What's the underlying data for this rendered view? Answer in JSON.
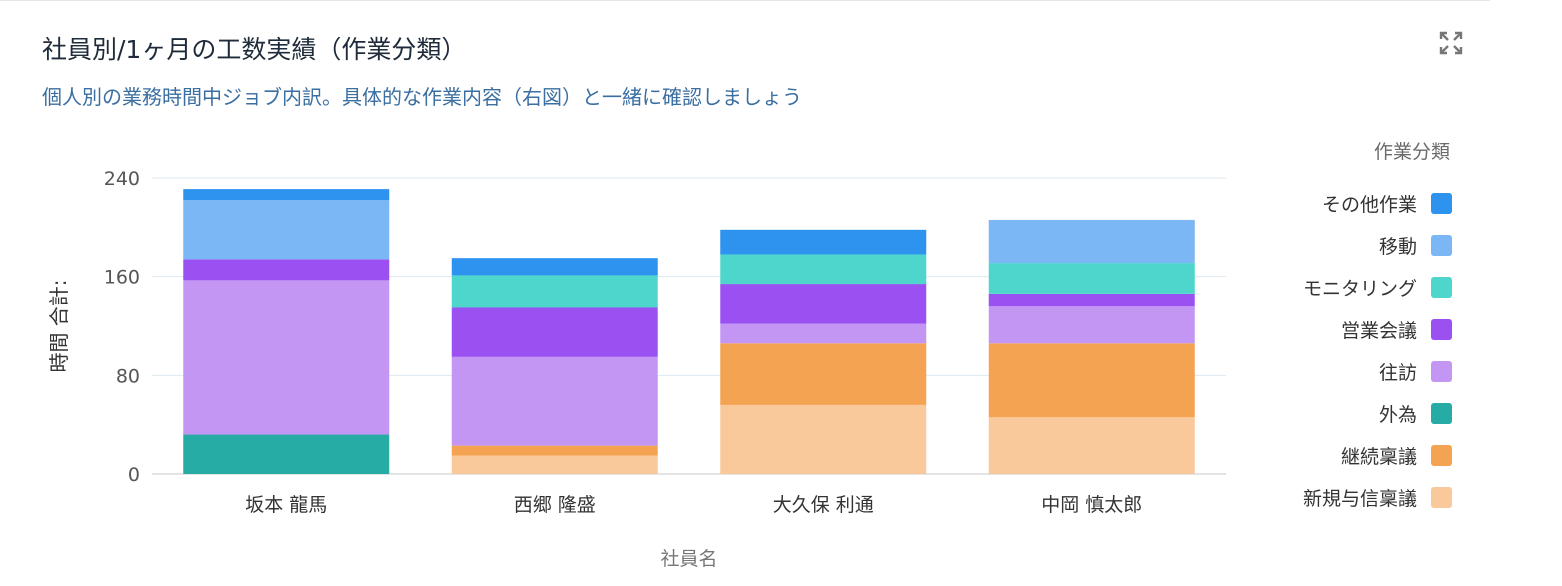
{
  "header": {
    "title": "社員別/1ヶ月の工数実績（作業分類）",
    "subtitle": "個人別の業務時間中ジョブ内訳。具体的な作業内容（右図）と一緒に確認しましょう",
    "expand_icon": "expand-icon"
  },
  "chart_data": {
    "type": "bar",
    "stacked": true,
    "categories": [
      "坂本 龍馬",
      "西郷 隆盛",
      "大久保 利通",
      "中岡 慎太郎"
    ],
    "series": [
      {
        "name": "新規与信稟議",
        "color": "#f9c89b",
        "values": [
          0,
          15,
          56,
          46
        ]
      },
      {
        "name": "継続稟議",
        "color": "#f4a352",
        "values": [
          0,
          8,
          50,
          60
        ]
      },
      {
        "name": "外為",
        "color": "#27aba5",
        "values": [
          32,
          0,
          0,
          0
        ]
      },
      {
        "name": "往訪",
        "color": "#c396f4",
        "values": [
          125,
          72,
          16,
          30
        ]
      },
      {
        "name": "営業会議",
        "color": "#9b50f2",
        "values": [
          17,
          40,
          32,
          10
        ]
      },
      {
        "name": "モニタリング",
        "color": "#4fd6cc",
        "values": [
          0,
          26,
          24,
          25
        ]
      },
      {
        "name": "移動",
        "color": "#7ab7f4",
        "values": [
          48,
          0,
          0,
          35
        ]
      },
      {
        "name": "その他作業",
        "color": "#2e93ee",
        "values": [
          9,
          14,
          20,
          0
        ]
      }
    ],
    "title": "社員別/1ヶ月の工数実績（作業分類）",
    "subtitle": "個人別の業務時間中ジョブ内訳。具体的な作業内容（右図）と一緒に確認しましょう",
    "xlabel": "社員名",
    "ylabel": "時間 合計:",
    "ylim": [
      0,
      240
    ],
    "yticks": [
      "0",
      "80",
      "160",
      "240"
    ],
    "grid": true,
    "legend_title": "作業分類",
    "legend_position": "right"
  }
}
